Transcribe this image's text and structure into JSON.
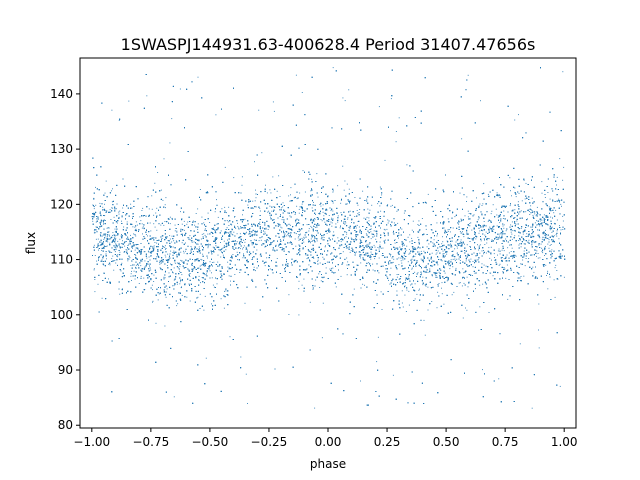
{
  "chart_data": {
    "type": "scatter",
    "title": "1SWASPJ144931.63-400628.4 Period 31407.47656s",
    "xlabel": "phase",
    "ylabel": "flux",
    "xlim": [
      -1.05,
      1.05
    ],
    "ylim": [
      79.5,
      146.5
    ],
    "x_ticks": [
      -1.0,
      -0.75,
      -0.5,
      -0.25,
      0.0,
      0.25,
      0.5,
      0.75,
      1.0
    ],
    "x_tick_labels": [
      "−1.00",
      "−0.75",
      "−0.50",
      "−0.25",
      "0.00",
      "0.25",
      "0.50",
      "0.75",
      "1.00"
    ],
    "y_ticks": [
      80,
      90,
      100,
      110,
      120,
      130,
      140
    ],
    "y_tick_labels": [
      "80",
      "90",
      "100",
      "110",
      "120",
      "130",
      "140"
    ],
    "grid": false,
    "legend": false,
    "point_color": "#1f77b4",
    "series": [
      {
        "x": [
          -1.0,
          -0.9,
          -0.8,
          -0.7,
          -0.6,
          -0.55,
          -0.5,
          -0.4,
          -0.3,
          -0.2,
          -0.1,
          0.0,
          0.1,
          0.2,
          0.3,
          0.4,
          0.45,
          0.5,
          0.6,
          0.7,
          0.8,
          0.9,
          1.0
        ],
        "y": [
          114.5,
          114,
          112.5,
          111,
          110.5,
          110.5,
          111,
          113,
          114.5,
          115,
          115,
          114.5,
          114,
          113,
          111.5,
          110.5,
          110.5,
          111,
          112.5,
          114,
          114.5,
          114.5,
          114.5
        ]
      }
    ]
  }
}
